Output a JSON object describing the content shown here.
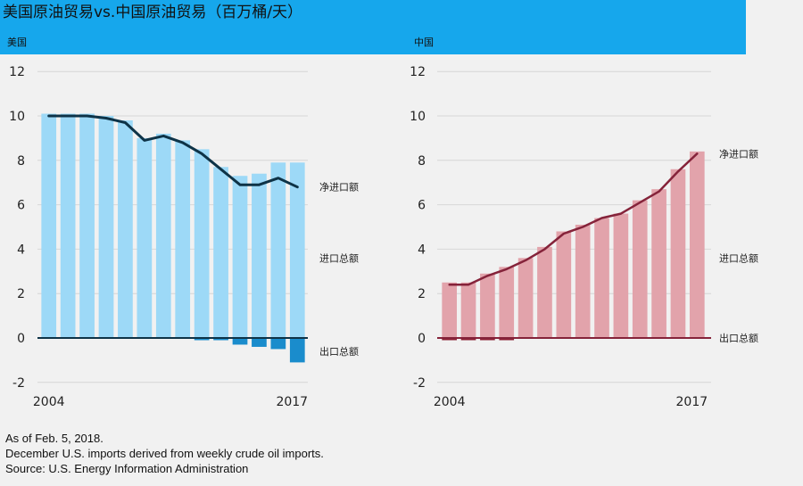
{
  "title": "美国原油贸易vs.中国原油贸易（百万桶/天）",
  "notes": [
    "As of Feb. 5, 2018.",
    "December U.S. imports derived from weekly crude oil imports.",
    "Source: U.S. Energy Information Administration"
  ],
  "colors": {
    "header": "#16a7ec",
    "us_imports": "#9dd9f7",
    "us_exports": "#1a8ccc",
    "us_net": "#0e3347",
    "cn_imports": "#e2a3ab",
    "cn_exports": "#8c1f33",
    "cn_net": "#85233a"
  },
  "chart_data": [
    {
      "type": "bar",
      "panel_label": "美国",
      "x": [
        2004,
        2005,
        2006,
        2007,
        2008,
        2009,
        2010,
        2011,
        2012,
        2013,
        2014,
        2015,
        2016,
        2017
      ],
      "x_tick_labels": [
        "2004",
        "2017"
      ],
      "ylim": [
        -2,
        12
      ],
      "y_ticks": [
        -2,
        0,
        2,
        4,
        6,
        8,
        10,
        12
      ],
      "grid": "horizontal",
      "series": [
        {
          "name": "进口总额",
          "kind": "bar",
          "values": [
            10.1,
            10.1,
            10.1,
            10.0,
            9.8,
            9.0,
            9.2,
            8.9,
            8.5,
            7.7,
            7.3,
            7.4,
            7.9,
            7.9
          ]
        },
        {
          "name": "出口总额",
          "kind": "bar",
          "values": [
            0.0,
            0.0,
            0.0,
            0.0,
            0.0,
            0.0,
            0.0,
            0.0,
            -0.1,
            -0.1,
            -0.3,
            -0.4,
            -0.5,
            -1.1
          ]
        },
        {
          "name": "净进口额",
          "kind": "line",
          "values": [
            10.0,
            10.0,
            10.0,
            9.9,
            9.7,
            8.9,
            9.1,
            8.8,
            8.3,
            7.6,
            6.9,
            6.9,
            7.2,
            6.8
          ]
        }
      ]
    },
    {
      "type": "bar",
      "panel_label": "中国",
      "x": [
        2004,
        2005,
        2006,
        2007,
        2008,
        2009,
        2010,
        2011,
        2012,
        2013,
        2014,
        2015,
        2016,
        2017
      ],
      "x_tick_labels": [
        "2004",
        "2017"
      ],
      "ylim": [
        -2,
        12
      ],
      "y_ticks": [
        -2,
        0,
        2,
        4,
        6,
        8,
        10,
        12
      ],
      "grid": "horizontal",
      "series": [
        {
          "name": "进口总额",
          "kind": "bar",
          "values": [
            2.5,
            2.5,
            2.9,
            3.2,
            3.6,
            4.1,
            4.8,
            5.1,
            5.4,
            5.6,
            6.2,
            6.7,
            7.6,
            8.4
          ]
        },
        {
          "name": "出口总额",
          "kind": "bar",
          "values": [
            -0.1,
            -0.1,
            -0.1,
            -0.1,
            0.0,
            0.0,
            0.0,
            0.0,
            0.0,
            0.0,
            0.0,
            0.0,
            0.0,
            0.0
          ]
        },
        {
          "name": "净进口额",
          "kind": "line",
          "values": [
            2.4,
            2.4,
            2.8,
            3.1,
            3.5,
            4.0,
            4.7,
            5.0,
            5.4,
            5.6,
            6.1,
            6.6,
            7.5,
            8.3
          ]
        }
      ]
    }
  ]
}
